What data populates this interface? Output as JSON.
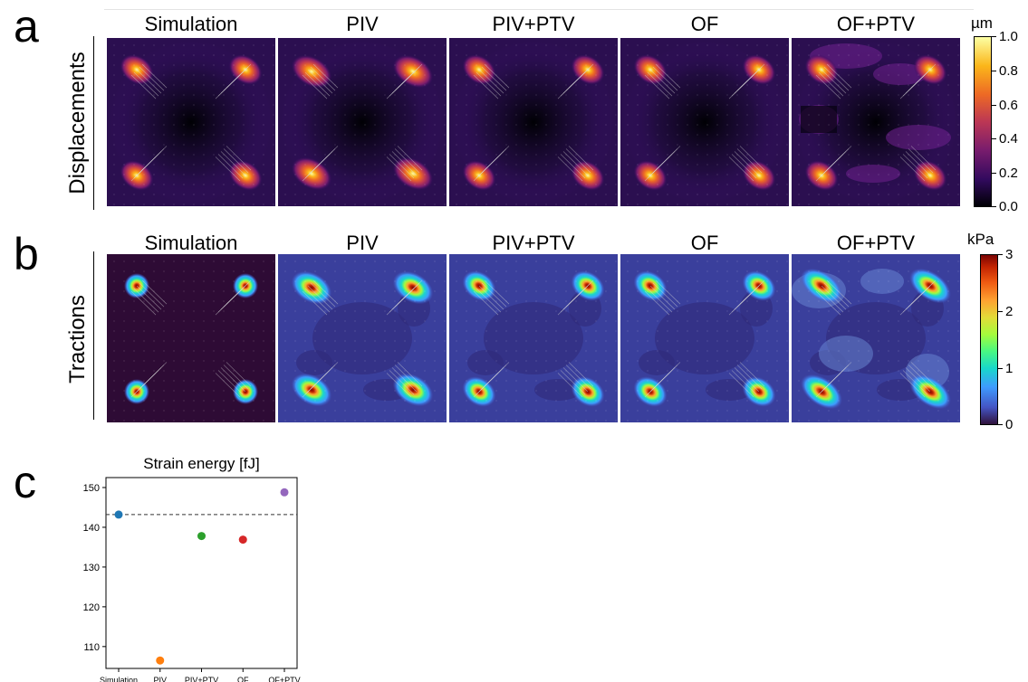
{
  "panels": {
    "a": {
      "letter": "a",
      "row_label": "Displacements",
      "colorbar_unit": "µm",
      "colorbar_ticks": [
        "1.0",
        "0.8",
        "0.6",
        "0.4",
        "0.2",
        "0.0"
      ],
      "colormap": "inferno"
    },
    "b": {
      "letter": "b",
      "row_label": "Tractions",
      "colorbar_unit": "kPa",
      "colorbar_ticks": [
        "3",
        "2",
        "1",
        "0"
      ],
      "colormap": "turbo"
    },
    "c": {
      "letter": "c"
    }
  },
  "columns": [
    "Simulation",
    "PIV",
    "PIV+PTV",
    "OF",
    "OF+PTV"
  ],
  "chart_data": {
    "type": "scatter",
    "title": "Strain energy [fJ]",
    "categories": [
      "Simulation",
      "PIV",
      "PIV+PTV",
      "OF",
      "OF+PTV"
    ],
    "values": [
      143.2,
      106.5,
      137.8,
      136.9,
      148.8
    ],
    "colors": [
      "#1f77b4",
      "#ff7f0e",
      "#2ca02c",
      "#d62728",
      "#9467bd"
    ],
    "reference_line": {
      "y": 143.2,
      "style": "dashed"
    },
    "ylim": [
      104.5,
      152.5
    ],
    "yticks": [
      110,
      120,
      130,
      140,
      150
    ],
    "xlabel": "",
    "ylabel": "",
    "grid": false
  }
}
